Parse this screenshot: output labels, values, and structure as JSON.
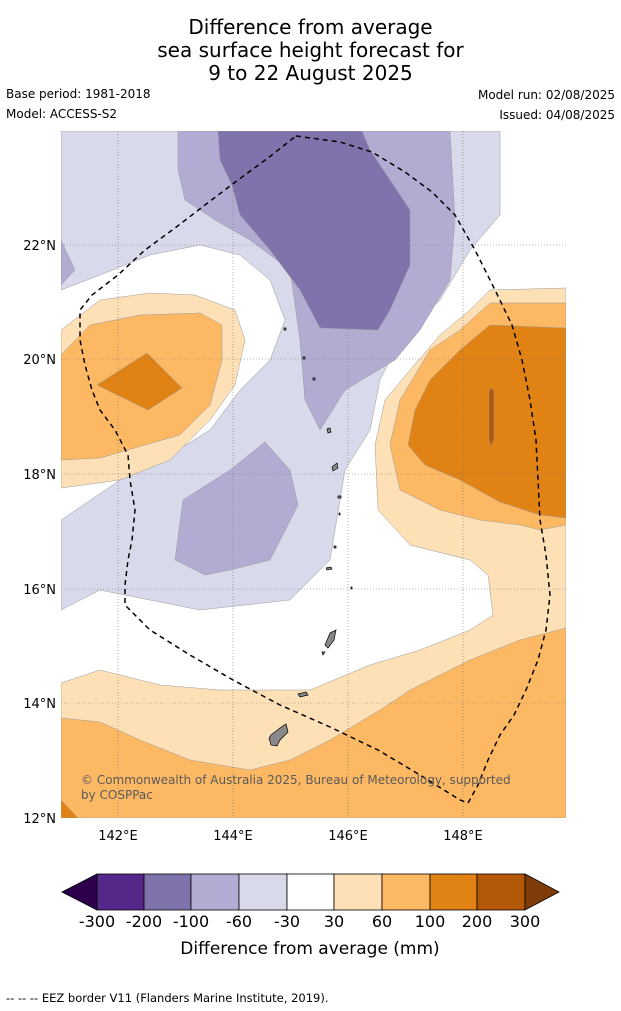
{
  "title": {
    "line1": "Difference from average",
    "line2": "sea surface height forecast for",
    "line3": "9 to 22 August 2025"
  },
  "meta": {
    "base_period": "Base period: 1981-2018",
    "model": "Model: ACCESS-S2",
    "model_run": "Model run: 02/08/2025",
    "issued": "Issued: 04/08/2025"
  },
  "map": {
    "lat_labels": [
      "22°N",
      "20°N",
      "18°N",
      "16°N",
      "14°N",
      "12°N"
    ],
    "lon_labels": [
      "142°E",
      "144°E",
      "146°E",
      "148°E"
    ],
    "copyright_line1": "© Commonwealth of Australia 2025, Bureau of Meteorology, supported",
    "copyright_line2": "by COSPPac",
    "colors": {
      "neg_200_300": "#542788",
      "neg_100_200": "#8073ac",
      "neg_60_100": "#b2abd2",
      "neg_30_60": "#d8daeb",
      "neutral": "#ffffff",
      "pos_30_60": "#fee0b6",
      "pos_60_100": "#fdb863",
      "pos_100_200": "#e08214",
      "pos_200_300": "#b35806"
    }
  },
  "colorbar": {
    "tick_labels": [
      "-300",
      "-200",
      "-100",
      "-60",
      "-30",
      "30",
      "60",
      "100",
      "200",
      "300"
    ],
    "label": "Difference from average (mm)",
    "colors": [
      "#2d004b",
      "#542788",
      "#8073ac",
      "#b2abd2",
      "#d8daeb",
      "#ffffff",
      "#fee0b6",
      "#fdb863",
      "#e08214",
      "#b35806",
      "#7f3b08"
    ]
  },
  "footnote": "--  --  -- EEZ border V11 (Flanders Marine Institute, 2019)."
}
